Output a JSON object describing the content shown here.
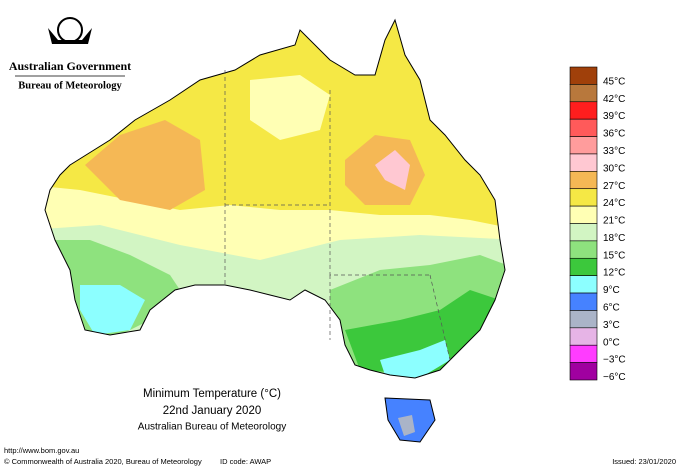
{
  "header": {
    "title": "Australian Government",
    "subtitle": "Bureau of Meteorology"
  },
  "map": {
    "title": "Minimum Temperature (°C)",
    "date": "22nd January 2020",
    "source": "Australian Bureau of Meteorology"
  },
  "legend": [
    {
      "label": "45°C",
      "color": "#a0400a"
    },
    {
      "label": "42°C",
      "color": "#b8783c"
    },
    {
      "label": "39°C",
      "color": "#ff1e1e"
    },
    {
      "label": "36°C",
      "color": "#ff5a5a"
    },
    {
      "label": "33°C",
      "color": "#ff9c9c"
    },
    {
      "label": "30°C",
      "color": "#ffc8d2"
    },
    {
      "label": "27°C",
      "color": "#f5b855"
    },
    {
      "label": "24°C",
      "color": "#f5e845"
    },
    {
      "label": "21°C",
      "color": "#ffffb4"
    },
    {
      "label": "18°C",
      "color": "#d2f5c3"
    },
    {
      "label": "15°C",
      "color": "#8ee27e"
    },
    {
      "label": "12°C",
      "color": "#3cc83c"
    },
    {
      "label": "9°C",
      "color": "#8cffff"
    },
    {
      "label": "6°C",
      "color": "#4682ff"
    },
    {
      "label": "3°C",
      "color": "#aab4c8"
    },
    {
      "label": "0°C",
      "color": "#e6b4e6"
    },
    {
      "label": "−3°C",
      "color": "#ff3cff"
    },
    {
      "label": "−6°C",
      "color": "#a000a0"
    }
  ],
  "footer": {
    "url": "http://www.bom.gov.au",
    "copyright": "© Commonwealth of Australia 2020, Bureau of Meteorology",
    "id": "ID code: AWAP",
    "issued": "Issued: 23/01/2020"
  }
}
